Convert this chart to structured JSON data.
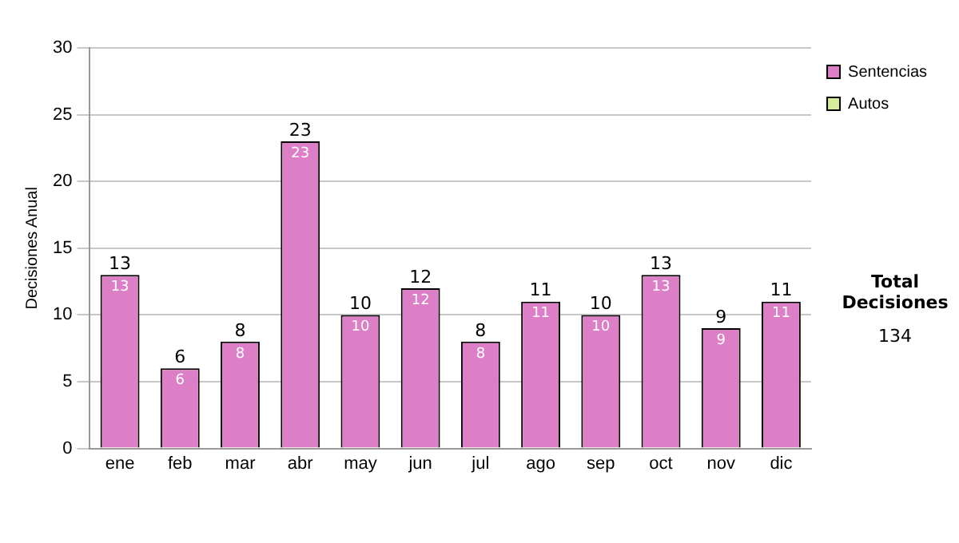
{
  "chart_data": {
    "type": "bar",
    "ylabel": "Decisiones Anual",
    "categories": [
      "ene",
      "feb",
      "mar",
      "abr",
      "may",
      "jun",
      "jul",
      "ago",
      "sep",
      "oct",
      "nov",
      "dic"
    ],
    "series": [
      {
        "name": "Sentencias",
        "color": "#dd7fc7",
        "values": [
          13,
          6,
          8,
          23,
          10,
          12,
          8,
          11,
          10,
          13,
          9,
          11
        ],
        "value_labels": [
          "13",
          "6",
          "8",
          "23",
          "10",
          "12",
          "8",
          "11",
          "10",
          "13",
          "9",
          "11"
        ]
      },
      {
        "name": "Autos",
        "color": "#d6eb9c",
        "values": [
          0,
          0,
          0,
          0,
          0,
          0,
          0,
          0,
          0,
          0,
          0,
          0
        ],
        "value_labels": [
          null,
          null,
          null,
          null,
          null,
          null,
          null,
          null,
          null,
          null,
          null,
          null
        ]
      }
    ],
    "stacked": true,
    "totals": [
      "13",
      "6",
      "8",
      "23",
      "10",
      "12",
      "8",
      "11",
      "10",
      "13",
      "9",
      "11"
    ],
    "ylim": [
      0,
      30
    ],
    "yticks": [
      0,
      5,
      10,
      15,
      20,
      25,
      30
    ],
    "grid": "y",
    "legend": "right",
    "annotations": [
      "Total Decisiones",
      "134"
    ]
  }
}
